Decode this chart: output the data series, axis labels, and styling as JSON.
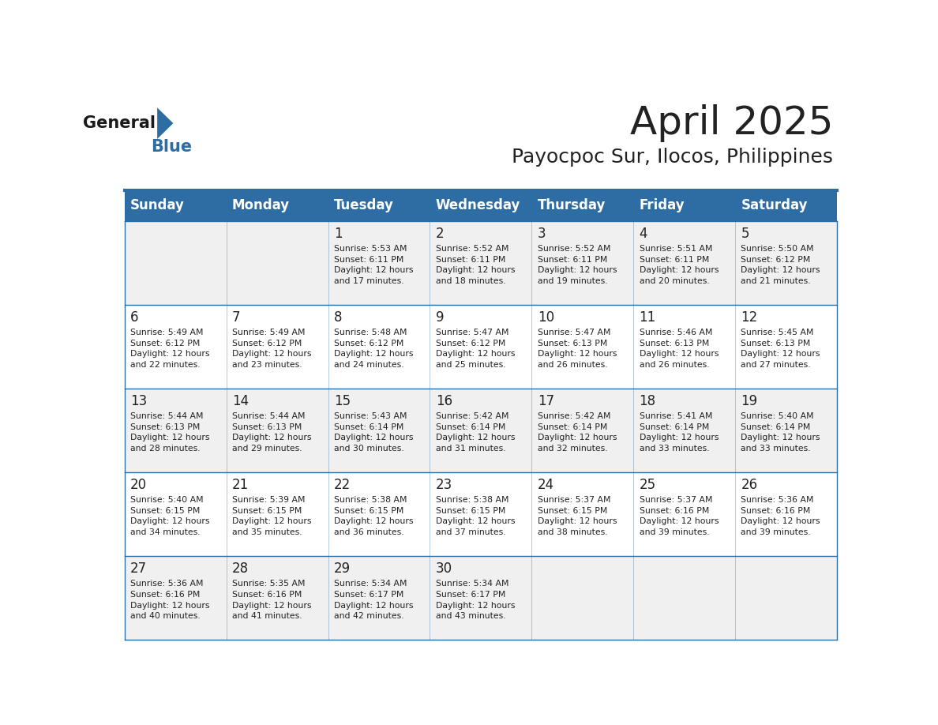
{
  "title": "April 2025",
  "subtitle": "Payocpoc Sur, Ilocos, Philippines",
  "header_bg_color": "#2E6DA4",
  "header_text_color": "#FFFFFF",
  "cell_bg_color_odd": "#F0F0F0",
  "cell_bg_color_even": "#FFFFFF",
  "text_color": "#222222",
  "border_color": "#2E6DA4",
  "days_of_week": [
    "Sunday",
    "Monday",
    "Tuesday",
    "Wednesday",
    "Thursday",
    "Friday",
    "Saturday"
  ],
  "weeks": [
    [
      {
        "day": "",
        "info": ""
      },
      {
        "day": "",
        "info": ""
      },
      {
        "day": "1",
        "info": "Sunrise: 5:53 AM\nSunset: 6:11 PM\nDaylight: 12 hours\nand 17 minutes."
      },
      {
        "day": "2",
        "info": "Sunrise: 5:52 AM\nSunset: 6:11 PM\nDaylight: 12 hours\nand 18 minutes."
      },
      {
        "day": "3",
        "info": "Sunrise: 5:52 AM\nSunset: 6:11 PM\nDaylight: 12 hours\nand 19 minutes."
      },
      {
        "day": "4",
        "info": "Sunrise: 5:51 AM\nSunset: 6:11 PM\nDaylight: 12 hours\nand 20 minutes."
      },
      {
        "day": "5",
        "info": "Sunrise: 5:50 AM\nSunset: 6:12 PM\nDaylight: 12 hours\nand 21 minutes."
      }
    ],
    [
      {
        "day": "6",
        "info": "Sunrise: 5:49 AM\nSunset: 6:12 PM\nDaylight: 12 hours\nand 22 minutes."
      },
      {
        "day": "7",
        "info": "Sunrise: 5:49 AM\nSunset: 6:12 PM\nDaylight: 12 hours\nand 23 minutes."
      },
      {
        "day": "8",
        "info": "Sunrise: 5:48 AM\nSunset: 6:12 PM\nDaylight: 12 hours\nand 24 minutes."
      },
      {
        "day": "9",
        "info": "Sunrise: 5:47 AM\nSunset: 6:12 PM\nDaylight: 12 hours\nand 25 minutes."
      },
      {
        "day": "10",
        "info": "Sunrise: 5:47 AM\nSunset: 6:13 PM\nDaylight: 12 hours\nand 26 minutes."
      },
      {
        "day": "11",
        "info": "Sunrise: 5:46 AM\nSunset: 6:13 PM\nDaylight: 12 hours\nand 26 minutes."
      },
      {
        "day": "12",
        "info": "Sunrise: 5:45 AM\nSunset: 6:13 PM\nDaylight: 12 hours\nand 27 minutes."
      }
    ],
    [
      {
        "day": "13",
        "info": "Sunrise: 5:44 AM\nSunset: 6:13 PM\nDaylight: 12 hours\nand 28 minutes."
      },
      {
        "day": "14",
        "info": "Sunrise: 5:44 AM\nSunset: 6:13 PM\nDaylight: 12 hours\nand 29 minutes."
      },
      {
        "day": "15",
        "info": "Sunrise: 5:43 AM\nSunset: 6:14 PM\nDaylight: 12 hours\nand 30 minutes."
      },
      {
        "day": "16",
        "info": "Sunrise: 5:42 AM\nSunset: 6:14 PM\nDaylight: 12 hours\nand 31 minutes."
      },
      {
        "day": "17",
        "info": "Sunrise: 5:42 AM\nSunset: 6:14 PM\nDaylight: 12 hours\nand 32 minutes."
      },
      {
        "day": "18",
        "info": "Sunrise: 5:41 AM\nSunset: 6:14 PM\nDaylight: 12 hours\nand 33 minutes."
      },
      {
        "day": "19",
        "info": "Sunrise: 5:40 AM\nSunset: 6:14 PM\nDaylight: 12 hours\nand 33 minutes."
      }
    ],
    [
      {
        "day": "20",
        "info": "Sunrise: 5:40 AM\nSunset: 6:15 PM\nDaylight: 12 hours\nand 34 minutes."
      },
      {
        "day": "21",
        "info": "Sunrise: 5:39 AM\nSunset: 6:15 PM\nDaylight: 12 hours\nand 35 minutes."
      },
      {
        "day": "22",
        "info": "Sunrise: 5:38 AM\nSunset: 6:15 PM\nDaylight: 12 hours\nand 36 minutes."
      },
      {
        "day": "23",
        "info": "Sunrise: 5:38 AM\nSunset: 6:15 PM\nDaylight: 12 hours\nand 37 minutes."
      },
      {
        "day": "24",
        "info": "Sunrise: 5:37 AM\nSunset: 6:15 PM\nDaylight: 12 hours\nand 38 minutes."
      },
      {
        "day": "25",
        "info": "Sunrise: 5:37 AM\nSunset: 6:16 PM\nDaylight: 12 hours\nand 39 minutes."
      },
      {
        "day": "26",
        "info": "Sunrise: 5:36 AM\nSunset: 6:16 PM\nDaylight: 12 hours\nand 39 minutes."
      }
    ],
    [
      {
        "day": "27",
        "info": "Sunrise: 5:36 AM\nSunset: 6:16 PM\nDaylight: 12 hours\nand 40 minutes."
      },
      {
        "day": "28",
        "info": "Sunrise: 5:35 AM\nSunset: 6:16 PM\nDaylight: 12 hours\nand 41 minutes."
      },
      {
        "day": "29",
        "info": "Sunrise: 5:34 AM\nSunset: 6:17 PM\nDaylight: 12 hours\nand 42 minutes."
      },
      {
        "day": "30",
        "info": "Sunrise: 5:34 AM\nSunset: 6:17 PM\nDaylight: 12 hours\nand 43 minutes."
      },
      {
        "day": "",
        "info": ""
      },
      {
        "day": "",
        "info": ""
      },
      {
        "day": "",
        "info": ""
      }
    ]
  ],
  "logo_general_color": "#1A1A1A",
  "logo_blue_color": "#2E6DA4",
  "logo_triangle_color": "#2E6DA4"
}
